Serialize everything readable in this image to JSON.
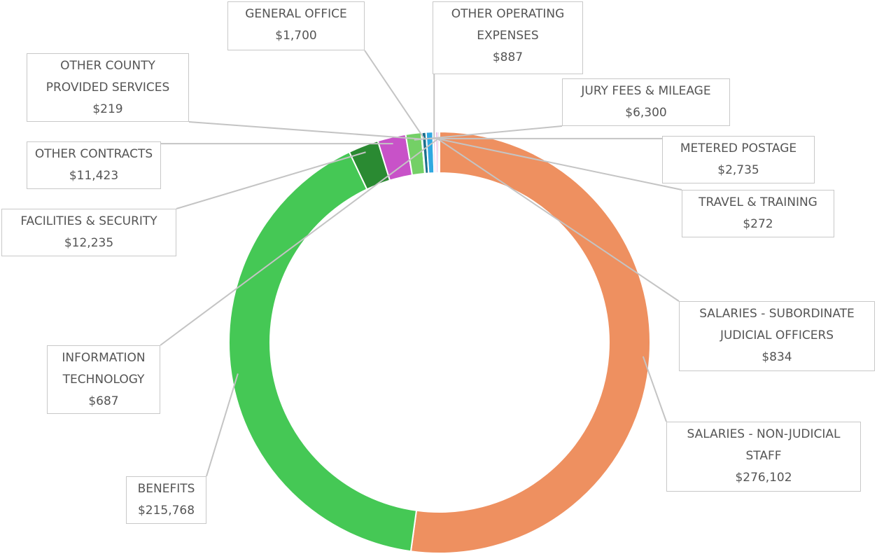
{
  "chart_data": {
    "type": "donut",
    "categories": [
      "SALARIES - NON-JUDICIAL STAFF",
      "BENEFITS",
      "FACILITIES & SECURITY",
      "OTHER CONTRACTS",
      "JURY FEES & MILEAGE",
      "OTHER COUNTY PROVIDED SERVICES",
      "GENERAL OFFICE",
      "METERED POSTAGE",
      "OTHER OPERATING EXPENSES",
      "TRAVEL & TRAINING",
      "SALARIES - SUBORDINATE JUDICIAL OFFICERS",
      "INFORMATION TECHNOLOGY"
    ],
    "values": [
      276102,
      215768,
      12235,
      11423,
      6300,
      219,
      1700,
      2735,
      887,
      272,
      834,
      687
    ],
    "value_labels": [
      "$276,102",
      "$215,768",
      "$12,235",
      "$11,423",
      "$6,300",
      "$219",
      "$1,700",
      "$2,735",
      "$887",
      "$272",
      "$834",
      "$687"
    ],
    "colors": [
      "#ee9060",
      "#45c855",
      "#2a8a32",
      "#c852c8",
      "#74d066",
      "#e8b8e0",
      "#1a6f8c",
      "#30a8e0",
      "#f0c0dc",
      "#7a2a9a",
      "#d070d0",
      "#bdbdbd"
    ]
  }
}
